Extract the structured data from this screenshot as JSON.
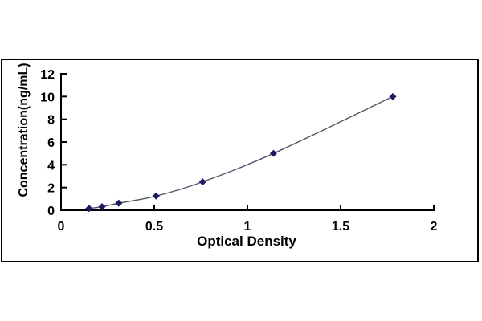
{
  "page": {
    "background": "#ffffff"
  },
  "chart_data": {
    "type": "scatter",
    "subtype": "standard-curve-with-smooth-line",
    "title": "",
    "xlabel": "Optical Density",
    "ylabel": "Concentration(ng/mL)",
    "series": [
      {
        "name": "standard-curve",
        "x": [
          0.15,
          0.22,
          0.31,
          0.51,
          0.76,
          1.14,
          1.78
        ],
        "y": [
          0.156,
          0.312,
          0.625,
          1.25,
          2.5,
          5,
          10
        ]
      }
    ],
    "xlim": [
      0,
      2
    ],
    "ylim": [
      0,
      12
    ],
    "x_tick_values": [
      0,
      0.5,
      1,
      1.5,
      2
    ],
    "x_tick_labels": [
      "0",
      "0.5",
      "1",
      "1.5",
      "2"
    ],
    "y_tick_values": [
      0,
      2,
      4,
      6,
      8,
      10,
      12
    ],
    "y_tick_labels": [
      "0",
      "2",
      "4",
      "6",
      "8",
      "10",
      "12"
    ],
    "grid": false,
    "legend": false,
    "marker": "diamond",
    "colors": {
      "marker": "#1c1c64",
      "line": "#55556a",
      "axis": "#000000",
      "frame": "#000000",
      "text": "#000000",
      "background": "#ffffff"
    }
  }
}
